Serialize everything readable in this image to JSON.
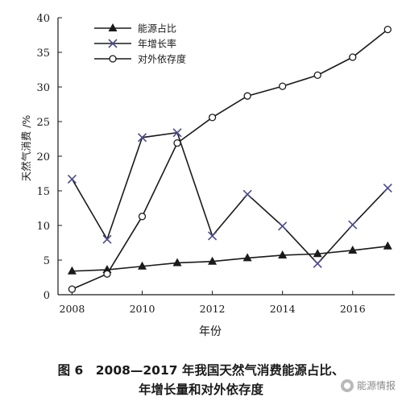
{
  "chart_data": {
    "type": "line",
    "x": [
      2008,
      2009,
      2010,
      2011,
      2012,
      2013,
      2014,
      2015,
      2016,
      2017
    ],
    "series": [
      {
        "name": "能源占比",
        "marker": "triangle",
        "values": [
          3.4,
          3.6,
          4.1,
          4.6,
          4.8,
          5.3,
          5.7,
          5.9,
          6.4,
          7.0
        ]
      },
      {
        "name": "年增长率",
        "marker": "x",
        "values": [
          16.7,
          8.0,
          22.7,
          23.4,
          8.5,
          14.5,
          9.9,
          4.5,
          10.1,
          15.4
        ]
      },
      {
        "name": "对外依存度",
        "marker": "circle",
        "values": [
          0.8,
          3.0,
          11.3,
          21.9,
          25.6,
          28.7,
          30.1,
          31.7,
          34.3,
          38.3
        ]
      }
    ],
    "xlabel": "年份",
    "ylabel": "天然气消费 /%",
    "xlim": [
      2007.6,
      2017.2
    ],
    "ylim": [
      0,
      40
    ],
    "x_ticks": [
      "2008",
      "2010",
      "2012",
      "2014",
      "2016"
    ],
    "x_tick_values": [
      2008,
      2010,
      2012,
      2014,
      2016
    ],
    "y_ticks": [
      "0",
      "5",
      "10",
      "15",
      "20",
      "25",
      "30",
      "35",
      "40"
    ],
    "y_tick_values": [
      0,
      5,
      10,
      15,
      20,
      25,
      30,
      35,
      40
    ],
    "legend_position": "top-left",
    "grid": false,
    "line_color": "#1a1a1a",
    "x_marker_color": "#4a4a8c"
  },
  "caption": {
    "line1": "图 6　2008—2017 年我国天然气消费能源占比、",
    "line2": "年增长量和对外依存度"
  },
  "watermark": {
    "text": "能源情报",
    "icon": "wechat-logo-icon"
  }
}
